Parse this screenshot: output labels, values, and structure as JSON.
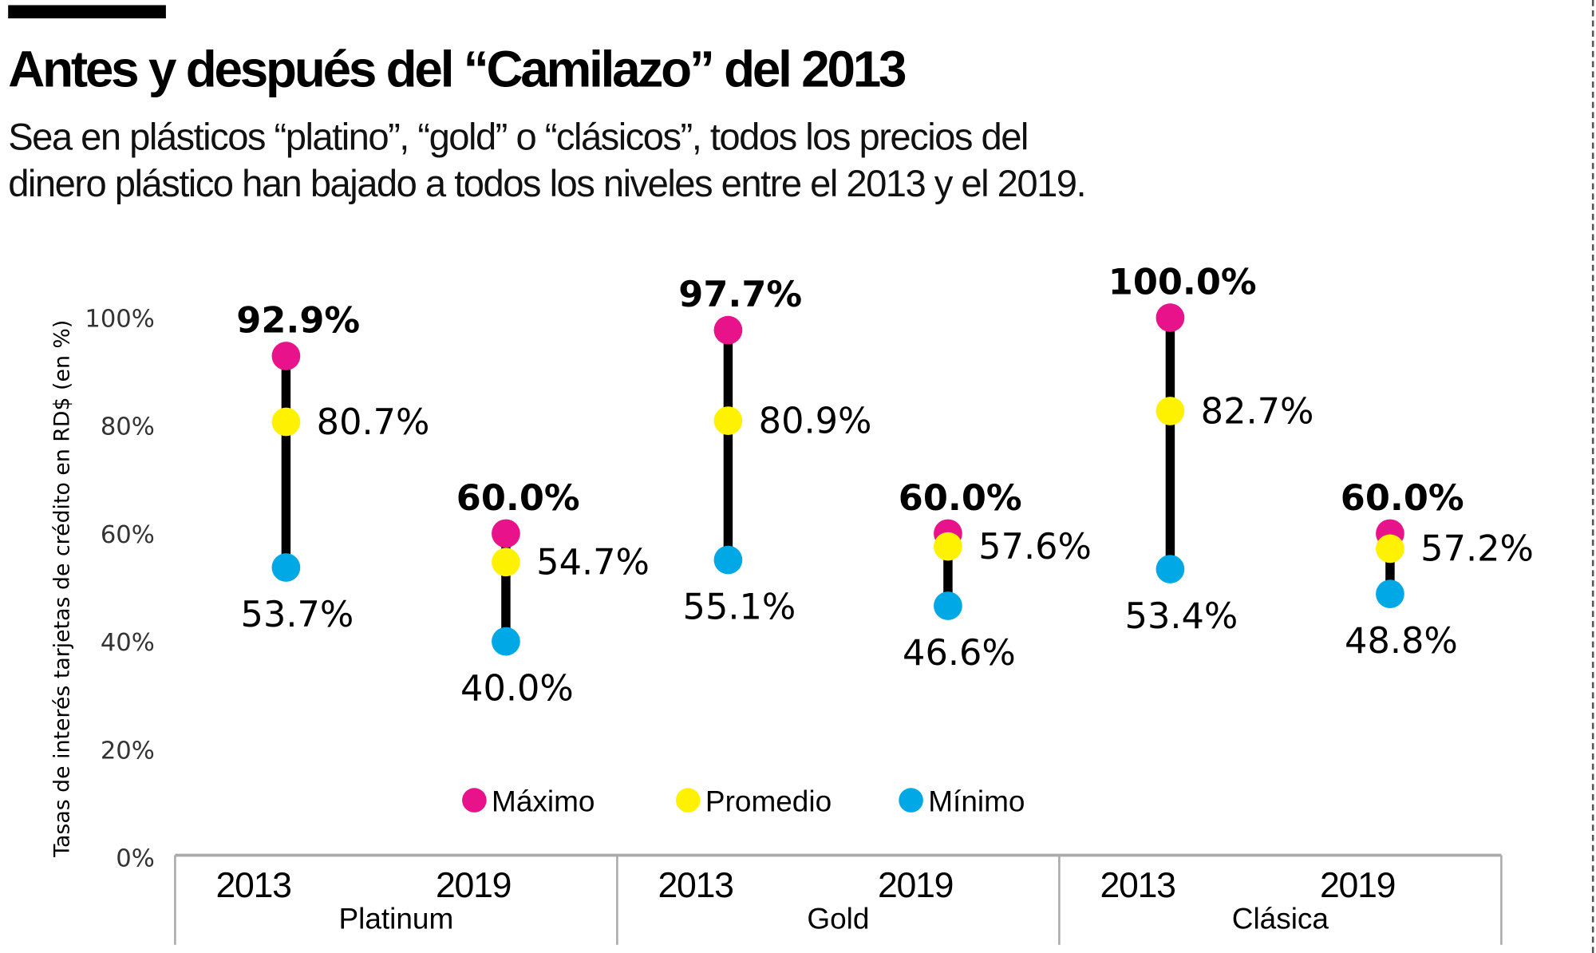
{
  "header": {
    "title": "Antes y después del “Camilazo” del 2013",
    "subtitle_lines": [
      "Sea en plásticos “platino”, “gold” o “clásicos”, todos los precios del",
      "dinero plástico han bajado a todos los niveles entre el 2013 y el 2019."
    ]
  },
  "chart_data": {
    "type": "dumbbell",
    "ylabel": "Tasas de interés tarjetas de crédito en RD$ (en %)",
    "ylim": [
      0,
      100
    ],
    "yticks": [
      "0%",
      "20%",
      "40%",
      "60%",
      "80%",
      "100%"
    ],
    "grid": false,
    "legend_position": "bottom-center",
    "groups": [
      {
        "name": "Platinum",
        "points": [
          {
            "year": "2013",
            "max": 92.9,
            "avg": 80.7,
            "min": 53.7,
            "labels": {
              "max": "92.9%",
              "avg": "80.7%",
              "min": "53.7%"
            }
          },
          {
            "year": "2019",
            "max": 60.0,
            "avg": 54.7,
            "min": 40.0,
            "labels": {
              "max": "60.0%",
              "avg": "54.7%",
              "min": "40.0%"
            }
          }
        ]
      },
      {
        "name": "Gold",
        "points": [
          {
            "year": "2013",
            "max": 97.7,
            "avg": 80.9,
            "min": 55.1,
            "labels": {
              "max": "97.7%",
              "avg": "80.9%",
              "min": "55.1%"
            }
          },
          {
            "year": "2019",
            "max": 60.0,
            "avg": 57.6,
            "min": 46.6,
            "labels": {
              "max": "60.0%",
              "avg": "57.6%",
              "min": "46.6%"
            }
          }
        ]
      },
      {
        "name": "Clásica",
        "points": [
          {
            "year": "2013",
            "max": 100.0,
            "avg": 82.7,
            "min": 53.4,
            "labels": {
              "max": "100.0%",
              "avg": "82.7%",
              "min": "53.4%"
            }
          },
          {
            "year": "2019",
            "max": 60.0,
            "avg": 57.2,
            "min": 48.8,
            "labels": {
              "max": "60.0%",
              "avg": "57.2%",
              "min": "48.8%"
            }
          }
        ]
      }
    ],
    "series": [
      {
        "key": "max",
        "name": "Máximo",
        "color": "#e8138a"
      },
      {
        "key": "avg",
        "name": "Promedio",
        "color": "#fff200"
      },
      {
        "key": "min",
        "name": "Mínimo",
        "color": "#00a8e6"
      }
    ]
  }
}
